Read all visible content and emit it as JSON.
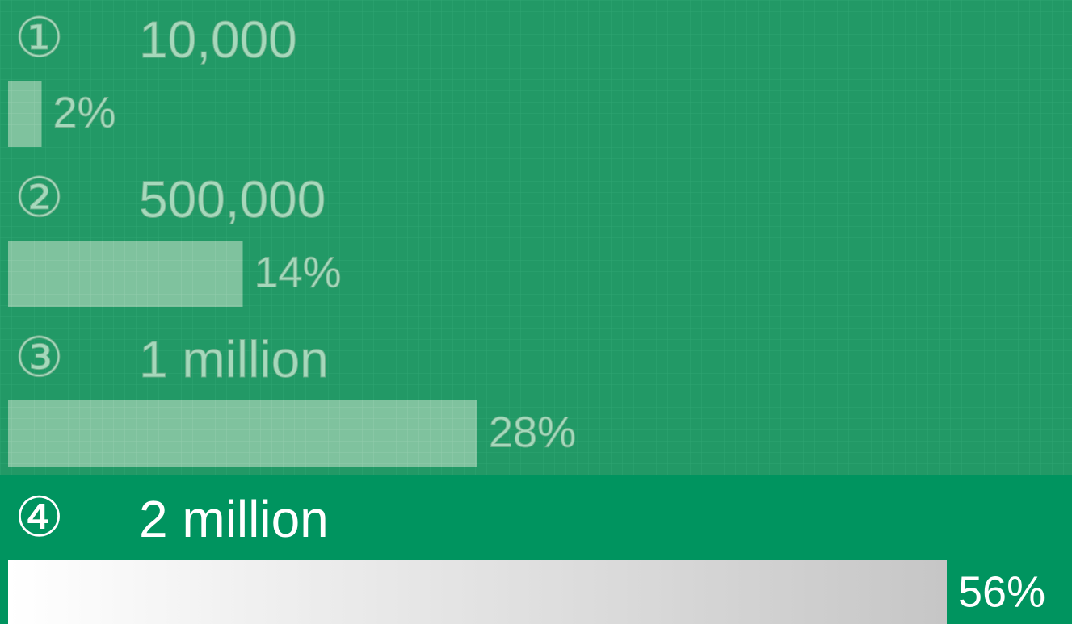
{
  "chart_data": {
    "type": "bar",
    "markers": [
      "①",
      "②",
      "③",
      "④"
    ],
    "categories": [
      "10,000",
      "500,000",
      "1 million",
      "2 million"
    ],
    "values": [
      2,
      14,
      28,
      56
    ],
    "value_labels": [
      "2%",
      "14%",
      "28%",
      "56%"
    ],
    "highlight": 3,
    "color": "#7fc29e",
    "highlight_color": "#ffffff"
  }
}
